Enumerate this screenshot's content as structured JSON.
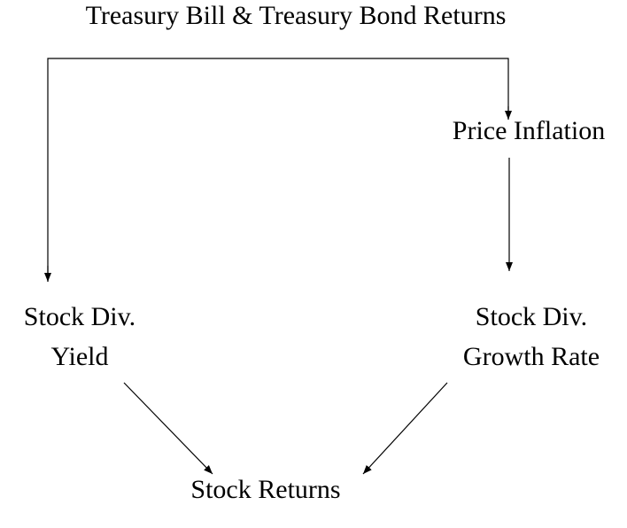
{
  "nodes": [
    {
      "lines": [
        "Treasury Bill & Treasury Bond Returns"
      ]
    },
    {
      "lines": [
        "Price Inflation"
      ]
    },
    {
      "lines": [
        "Stock Div.",
        "Yield"
      ]
    },
    {
      "lines": [
        "Stock Div.",
        "Growth Rate"
      ]
    },
    {
      "lines": [
        "Stock Returns"
      ]
    }
  ]
}
